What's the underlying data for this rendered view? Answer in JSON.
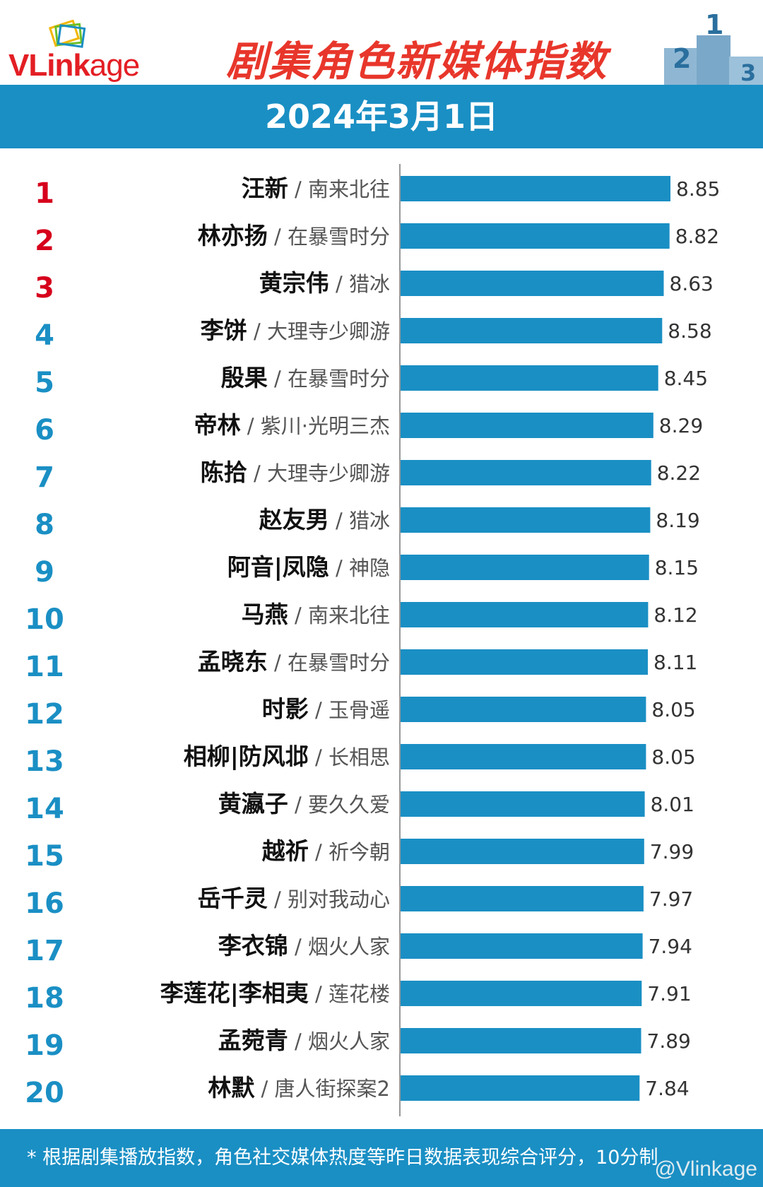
{
  "logo": {
    "v": "VLink",
    "age": "age"
  },
  "title": "剧集角色新媒体指数",
  "date": "2024年3月1日",
  "footer": "* 根据剧集播放指数，角色社交媒体热度等昨日数据表现综合评分，10分制",
  "watermark": "@Vlinkage",
  "podium_numbers": [
    "2",
    "1",
    "3"
  ],
  "colors": {
    "bar": "#1a8fc4",
    "band": "#1a8fc4",
    "top_rank": "#d6001c",
    "rank": "#1a8fc4",
    "title": "#e8362b"
  },
  "chart_data": {
    "type": "bar",
    "orientation": "horizontal",
    "rows": [
      {
        "rank": "1",
        "name": "汪新",
        "show": "南来北往",
        "value": 8.85
      },
      {
        "rank": "2",
        "name": "林亦扬",
        "show": "在暴雪时分",
        "value": 8.82
      },
      {
        "rank": "3",
        "name": "黄宗伟",
        "show": "猎冰",
        "value": 8.63
      },
      {
        "rank": "4",
        "name": "李饼",
        "show": "大理寺少卿游",
        "value": 8.58
      },
      {
        "rank": "5",
        "name": "殷果",
        "show": "在暴雪时分",
        "value": 8.45
      },
      {
        "rank": "6",
        "name": "帝林",
        "show": "紫川·光明三杰",
        "value": 8.29
      },
      {
        "rank": "7",
        "name": "陈拾",
        "show": "大理寺少卿游",
        "value": 8.22
      },
      {
        "rank": "8",
        "name": "赵友男",
        "show": "猎冰",
        "value": 8.19
      },
      {
        "rank": "9",
        "name": "阿音|凤隐",
        "show": "神隐",
        "value": 8.15
      },
      {
        "rank": "10",
        "name": "马燕",
        "show": "南来北往",
        "value": 8.12
      },
      {
        "rank": "11",
        "name": "孟晓东",
        "show": "在暴雪时分",
        "value": 8.11
      },
      {
        "rank": "12",
        "name": "时影",
        "show": "玉骨遥",
        "value": 8.05
      },
      {
        "rank": "13",
        "name": "相柳|防风邶",
        "show": "长相思",
        "value": 8.05
      },
      {
        "rank": "14",
        "name": "黄瀛子",
        "show": "要久久爱",
        "value": 8.01
      },
      {
        "rank": "15",
        "name": "越祈",
        "show": "祈今朝",
        "value": 7.99
      },
      {
        "rank": "16",
        "name": "岳千灵",
        "show": "别对我动心",
        "value": 7.97
      },
      {
        "rank": "17",
        "name": "李衣锦",
        "show": "烟火人家",
        "value": 7.94
      },
      {
        "rank": "18",
        "name": "李莲花|李相夷",
        "show": "莲花楼",
        "value": 7.91
      },
      {
        "rank": "19",
        "name": "孟菀青",
        "show": "烟火人家",
        "value": 7.89
      },
      {
        "rank": "20",
        "name": "林默",
        "show": "唐人街探案2",
        "value": 7.84
      }
    ],
    "values_labeled": true,
    "grid": false
  }
}
